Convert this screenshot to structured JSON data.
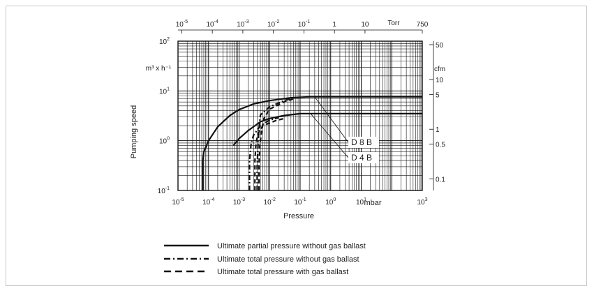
{
  "chart_data": {
    "type": "line",
    "xscale": "log",
    "yscale": "log",
    "xlim": [
      1e-05,
      1000
    ],
    "ylim": [
      0.1,
      100
    ],
    "xlabel": "Pressure",
    "xunit": "mbar",
    "ylabel": "Pumping speed",
    "yunit": "m³ x h⁻¹",
    "grid": true,
    "x_ticks": [
      {
        "v": 1e-05,
        "b": "10",
        "e": "-5"
      },
      {
        "v": 0.0001,
        "b": "10",
        "e": "-4"
      },
      {
        "v": 0.001,
        "b": "10",
        "e": "-3"
      },
      {
        "v": 0.01,
        "b": "10",
        "e": "-2"
      },
      {
        "v": 0.1,
        "b": "10",
        "e": "-1"
      },
      {
        "v": 1,
        "b": "10",
        "e": "0"
      },
      {
        "v": 10,
        "b": "10",
        "e": "1"
      },
      {
        "v": 1000,
        "b": "10",
        "e": "3"
      }
    ],
    "y_ticks": [
      {
        "v": 0.1,
        "b": "10",
        "e": "-1"
      },
      {
        "v": 1,
        "b": "10",
        "e": "0"
      },
      {
        "v": 10,
        "b": "10",
        "e": "1"
      },
      {
        "v": 100,
        "b": "10",
        "e": "2"
      }
    ],
    "top_axis": {
      "unit": "Torr",
      "ticks": [
        {
          "v": 1.33e-05,
          "b": "10",
          "e": "-5"
        },
        {
          "v": 0.000133,
          "b": "10",
          "e": "-4"
        },
        {
          "v": 0.00133,
          "b": "10",
          "e": "-3"
        },
        {
          "v": 0.0133,
          "b": "10",
          "e": "-2"
        },
        {
          "v": 0.133,
          "b": "10",
          "e": "-1"
        },
        {
          "v": 1.33,
          "b": "1",
          "e": ""
        },
        {
          "v": 13.3,
          "b": "10",
          "e": ""
        },
        {
          "v": 1000,
          "b": "750",
          "e": ""
        }
      ]
    },
    "right_axis": {
      "unit": "cfm",
      "ticks": [
        {
          "v": 85,
          "label": "50"
        },
        {
          "v": 17,
          "label": "10"
        },
        {
          "v": 8.5,
          "label": "5"
        },
        {
          "v": 1.7,
          "label": "1"
        },
        {
          "v": 0.85,
          "label": "0.5"
        },
        {
          "v": 0.17,
          "label": "0.1"
        }
      ]
    },
    "series": [
      {
        "name": "Ultimate partial pressure without gas ballast",
        "pump": "D 8 B",
        "style": "solid",
        "points": [
          [
            6.5e-05,
            0.1
          ],
          [
            6.5e-05,
            0.4
          ],
          [
            7e-05,
            0.6
          ],
          [
            0.0001,
            1.0
          ],
          [
            0.0002,
            1.9
          ],
          [
            0.0005,
            3.2
          ],
          [
            0.001,
            4.2
          ],
          [
            0.003,
            5.5
          ],
          [
            0.01,
            6.4
          ],
          [
            0.05,
            7.3
          ],
          [
            0.2,
            7.6
          ],
          [
            1000,
            7.6
          ]
        ]
      },
      {
        "name": "Ultimate partial pressure without gas ballast",
        "pump": "D 4 B",
        "style": "solid",
        "points": [
          [
            0.00065,
            0.8
          ],
          [
            0.001,
            1.1
          ],
          [
            0.002,
            1.6
          ],
          [
            0.005,
            2.4
          ],
          [
            0.01,
            2.8
          ],
          [
            0.03,
            3.2
          ],
          [
            0.1,
            3.5
          ],
          [
            1000,
            3.5
          ]
        ]
      },
      {
        "name": "Ultimate total pressure without gas ballast",
        "pump": "D 8 B",
        "style": "dashdot",
        "points": [
          [
            0.0039,
            0.1
          ],
          [
            0.0039,
            0.3
          ],
          [
            0.0042,
            0.9
          ],
          [
            0.0045,
            1.8
          ],
          [
            0.005,
            3.3
          ],
          [
            0.01,
            4.8
          ],
          [
            0.03,
            6.4
          ],
          [
            0.05,
            7.0
          ]
        ]
      },
      {
        "name": "Ultimate total pressure without gas ballast",
        "pump": "D 4 B",
        "style": "dashdot",
        "points": [
          [
            0.0022,
            0.1
          ],
          [
            0.0022,
            0.4
          ],
          [
            0.0025,
            0.9
          ],
          [
            0.003,
            1.3
          ],
          [
            0.005,
            2.0
          ],
          [
            0.01,
            2.6
          ],
          [
            0.02,
            2.9
          ]
        ]
      },
      {
        "name": "Ultimate total pressure with gas ballast",
        "pump": "D 8 B",
        "style": "dashed",
        "points": [
          [
            0.0045,
            0.1
          ],
          [
            0.0045,
            0.35
          ],
          [
            0.0048,
            0.8
          ],
          [
            0.0055,
            1.6
          ],
          [
            0.0065,
            2.8
          ],
          [
            0.01,
            4.3
          ],
          [
            0.03,
            6.0
          ],
          [
            0.06,
            6.9
          ]
        ]
      },
      {
        "name": "Ultimate total pressure with gas ballast",
        "pump": "D 4 B",
        "style": "dashed",
        "points": [
          [
            0.0033,
            0.1
          ],
          [
            0.0033,
            0.4
          ],
          [
            0.0036,
            0.9
          ],
          [
            0.0042,
            1.4
          ],
          [
            0.006,
            2.0
          ],
          [
            0.015,
            2.5
          ],
          [
            0.03,
            2.8
          ]
        ]
      }
    ],
    "annotations": [
      {
        "text": "D 8 B",
        "target_x": 0.3,
        "target_y": 7.6
      },
      {
        "text": "D 4 B",
        "target_x": 0.22,
        "target_y": 3.5
      }
    ],
    "legend": {
      "placement": "bottom",
      "entries": [
        {
          "label": "Ultimate partial pressure without gas ballast",
          "style": "solid"
        },
        {
          "label": "Ultimate total pressure without gas ballast",
          "style": "dashdot"
        },
        {
          "label": "Ultimate total pressure with gas ballast",
          "style": "dashed"
        }
      ]
    }
  }
}
